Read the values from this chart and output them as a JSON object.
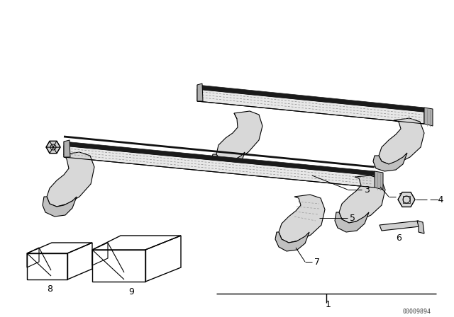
{
  "bg_color": "#ffffff",
  "line_color": "#000000",
  "fig_width": 6.4,
  "fig_height": 4.48,
  "dpi": 100,
  "watermark": "00009894"
}
